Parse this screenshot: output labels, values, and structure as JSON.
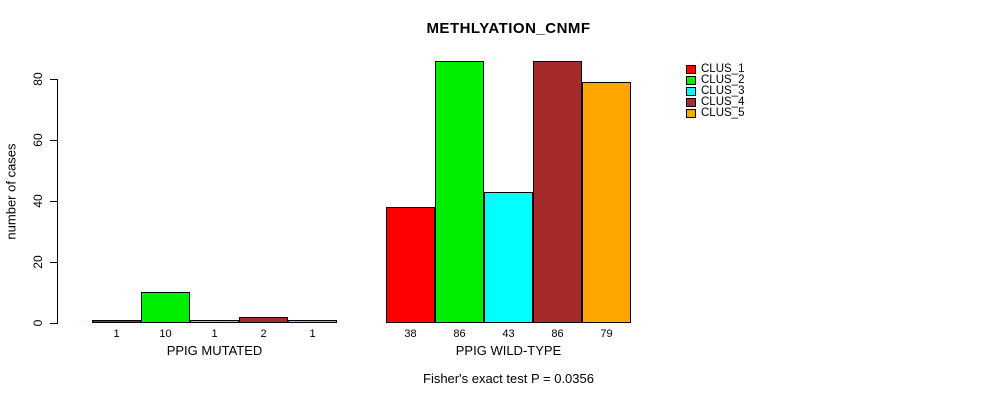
{
  "chart_data": {
    "type": "bar",
    "title": "METHLYATION_CNMF",
    "ylabel": "number of cases",
    "xlabel": "",
    "yticks": [
      0,
      20,
      40,
      60,
      80
    ],
    "ylim": [
      0,
      88
    ],
    "grid": false,
    "legend_position": "top-right",
    "show_values_under_bars": true,
    "series_labels": [
      "CLUS_1",
      "CLUS_2",
      "CLUS_3",
      "CLUS_4",
      "CLUS_5"
    ],
    "series_colors": [
      "#ff0000",
      "#00ee00",
      "#00ffff",
      "#a52a2a",
      "#ffa500"
    ],
    "groups": [
      {
        "label": "PPIG MUTATED",
        "values": [
          1,
          10,
          1,
          2,
          1
        ]
      },
      {
        "label": "PPIG WILD-TYPE",
        "values": [
          38,
          86,
          43,
          86,
          79
        ]
      }
    ],
    "annotation": "Fisher's exact test P = 0.0356"
  }
}
